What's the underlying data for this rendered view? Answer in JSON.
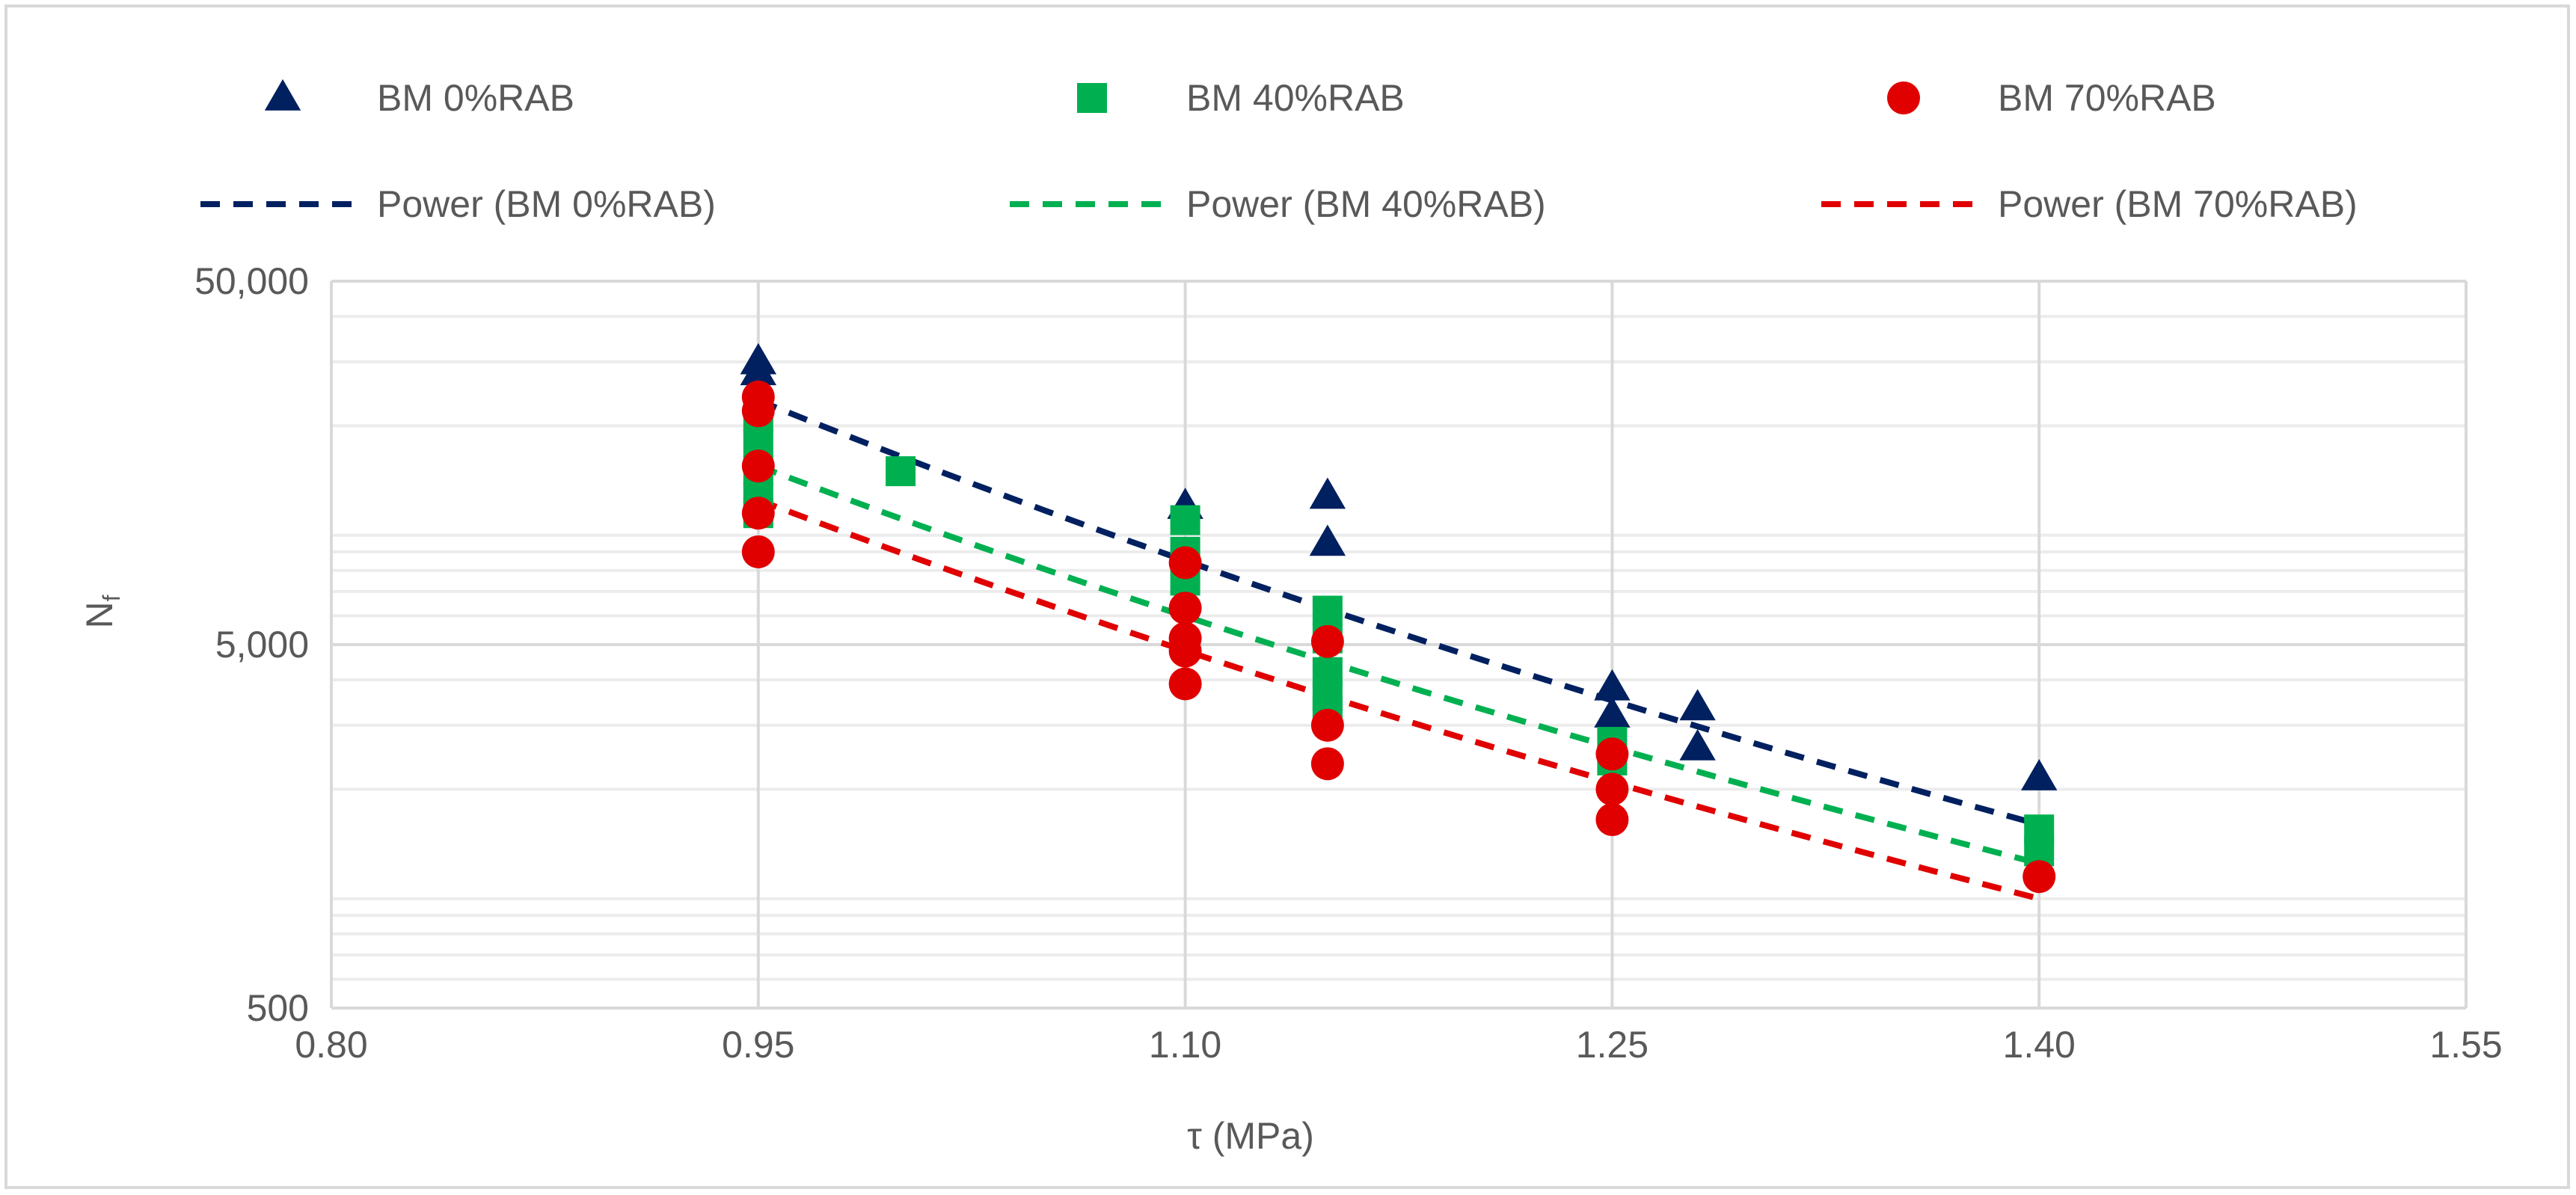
{
  "chart_data": {
    "type": "scatter",
    "title": "",
    "xlabel": "τ (MPa)",
    "ylabel_main": "N",
    "ylabel_sub": "f",
    "x_scale": "linear",
    "y_scale": "log",
    "xlim": [
      0.8,
      1.55
    ],
    "ylim": [
      500,
      50000
    ],
    "x_ticks": [
      0.8,
      0.95,
      1.1,
      1.25,
      1.4,
      1.55
    ],
    "x_tick_labels": [
      "0.80",
      "0.95",
      "1.10",
      "1.25",
      "1.40",
      "1.55"
    ],
    "y_ticks": [
      500,
      5000,
      50000
    ],
    "y_tick_labels": [
      "500",
      "5,000",
      "50,000"
    ],
    "grid": true,
    "legend_position": "top",
    "colors": {
      "bm0": "#002060",
      "bm40": "#00b050",
      "bm70": "#e00000",
      "grid": "#d9d9d9",
      "minor_grid": "#ececec",
      "text": "#595959"
    },
    "series": [
      {
        "name": "BM 0%RAB",
        "marker": "triangle",
        "color": "#002060",
        "points": [
          [
            0.95,
            30000
          ],
          [
            0.95,
            28000
          ],
          [
            1.1,
            12000
          ],
          [
            1.15,
            12800
          ],
          [
            1.15,
            9500
          ],
          [
            1.25,
            3800
          ],
          [
            1.25,
            3200
          ],
          [
            1.28,
            3350
          ],
          [
            1.28,
            2600
          ],
          [
            1.4,
            2150
          ]
        ]
      },
      {
        "name": "BM 40%RAB",
        "marker": "square",
        "color": "#00b050",
        "points": [
          [
            0.95,
            21000
          ],
          [
            0.95,
            18000
          ],
          [
            0.95,
            15000
          ],
          [
            0.95,
            12800
          ],
          [
            0.95,
            11500
          ],
          [
            1.0,
            15000
          ],
          [
            1.1,
            11000
          ],
          [
            1.1,
            9000
          ],
          [
            1.1,
            7500
          ],
          [
            1.15,
            6200
          ],
          [
            1.15,
            5200
          ],
          [
            1.15,
            4200
          ],
          [
            1.15,
            3600
          ],
          [
            1.15,
            3300
          ],
          [
            1.25,
            2700
          ],
          [
            1.25,
            2400
          ],
          [
            1.4,
            1550
          ],
          [
            1.4,
            1350
          ]
        ]
      },
      {
        "name": "BM 70%RAB",
        "marker": "circle",
        "color": "#e00000",
        "points": [
          [
            0.95,
            24000
          ],
          [
            0.95,
            22000
          ],
          [
            0.95,
            15500
          ],
          [
            0.95,
            11500
          ],
          [
            0.95,
            9000
          ],
          [
            1.1,
            8400
          ],
          [
            1.1,
            6300
          ],
          [
            1.1,
            5200
          ],
          [
            1.1,
            4800
          ],
          [
            1.1,
            3900
          ],
          [
            1.15,
            5100
          ],
          [
            1.15,
            3000
          ],
          [
            1.15,
            2350
          ],
          [
            1.25,
            2500
          ],
          [
            1.25,
            2000
          ],
          [
            1.25,
            1650
          ],
          [
            1.4,
            1150
          ]
        ]
      }
    ],
    "trendlines": [
      {
        "name": "Power (BM 0%RAB)",
        "type": "power",
        "color": "#002060",
        "x": [
          0.95,
          1.4
        ],
        "y": [
          23500,
          1600
        ]
      },
      {
        "name": "Power (BM 40%RAB)",
        "type": "power",
        "color": "#00b050",
        "x": [
          0.95,
          1.4
        ],
        "y": [
          15500,
          1250
        ]
      },
      {
        "name": "Power (BM 70%RAB)",
        "type": "power",
        "color": "#e00000",
        "x": [
          0.95,
          1.4
        ],
        "y": [
          12500,
          1000
        ]
      }
    ]
  }
}
